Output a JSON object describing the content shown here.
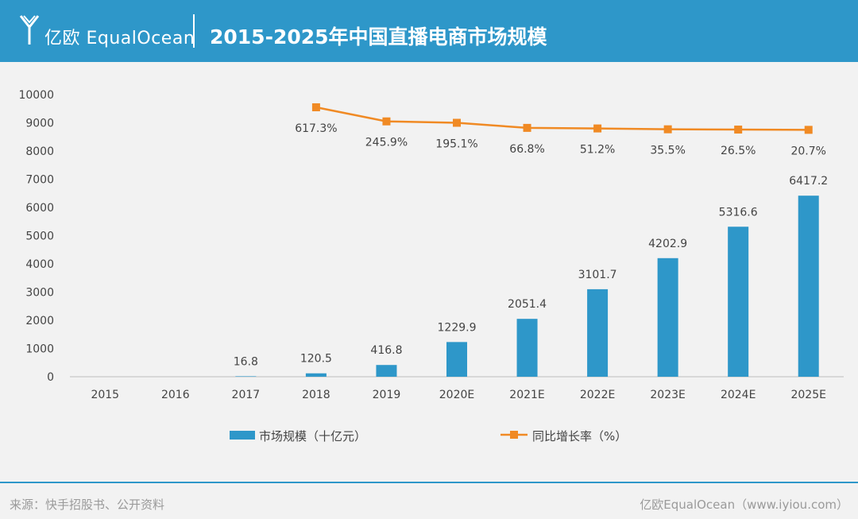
{
  "header": {
    "logo_text": "亿欧 EqualOcean",
    "title": "2015-2025年中国直播电商市场规模"
  },
  "colors": {
    "header_bg": "#2e97c9",
    "bar": "#2e97c9",
    "line": "#f08a24",
    "background": "#f2f2f2"
  },
  "chart_data": {
    "type": "bar",
    "title": "",
    "xlabel": "",
    "ylabel": "",
    "categories": [
      "2015",
      "2016",
      "2017",
      "2018",
      "2019",
      "2020E",
      "2021E",
      "2022E",
      "2023E",
      "2024E",
      "2025E"
    ],
    "ylim": [
      0,
      10000
    ],
    "yticks": [
      "0",
      "1000",
      "2000",
      "3000",
      "4000",
      "5000",
      "6000",
      "7000",
      "8000",
      "9000",
      "10000"
    ],
    "grid": false,
    "legend_position": "bottom",
    "series": [
      {
        "name": "市场规模（十亿元）",
        "type": "bar",
        "values": [
          null,
          null,
          16.8,
          120.5,
          416.8,
          1229.9,
          2051.4,
          3101.7,
          4202.9,
          5316.6,
          6417.2
        ],
        "labels": [
          "",
          "",
          "16.8",
          "120.5",
          "416.8",
          "1229.9",
          "2051.4",
          "3101.7",
          "4202.9",
          "5316.6",
          "6417.2"
        ]
      },
      {
        "name": "同比增长率（%）",
        "type": "line",
        "values": [
          null,
          null,
          null,
          617.3,
          245.9,
          195.1,
          66.8,
          51.2,
          35.5,
          26.5,
          20.7
        ],
        "labels": [
          "",
          "",
          "",
          "617.3%",
          "245.9%",
          "195.1%",
          "66.8%",
          "51.2%",
          "35.5%",
          "26.5%",
          "20.7%"
        ],
        "plot_y_axis": [
          null,
          null,
          null,
          9550,
          9050,
          9000,
          8820,
          8800,
          8770,
          8760,
          8750
        ]
      }
    ]
  },
  "footer": {
    "source": "来源：快手招股书、公开资料",
    "credit": "亿欧EqualOcean（www.iyiou.com）"
  }
}
